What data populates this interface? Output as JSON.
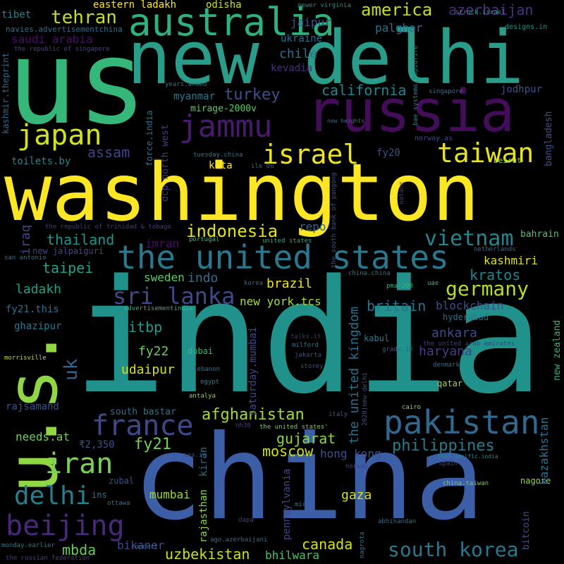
{
  "words": [
    {
      "text": "washington",
      "color": "#fde725"
    },
    {
      "text": "india",
      "color": "#21918c"
    },
    {
      "text": "us",
      "color": "#35b779"
    },
    {
      "text": "new delhi",
      "color": "#2a9d8a"
    },
    {
      "text": "china",
      "color": "#3b5ea6"
    },
    {
      "text": "russia",
      "color": "#440d5a"
    },
    {
      "text": "u.s.",
      "color": "#90d743"
    },
    {
      "text": "australia",
      "color": "#2db27d"
    },
    {
      "text": "the united states",
      "color": "#2a788e"
    },
    {
      "text": "israel",
      "color": "#f0e51a"
    },
    {
      "text": "taiwan",
      "color": "#e8e419"
    },
    {
      "text": "japan",
      "color": "#d2e21b"
    },
    {
      "text": "jammu",
      "color": "#481a6c"
    },
    {
      "text": "pakistan",
      "color": "#31688e"
    },
    {
      "text": "france",
      "color": "#3e4989"
    },
    {
      "text": "iran",
      "color": "#7ad151"
    },
    {
      "text": "beijing",
      "color": "#482878"
    },
    {
      "text": "delhi",
      "color": "#277f8e"
    },
    {
      "text": "south korea",
      "color": "#2a788e"
    },
    {
      "text": "germany",
      "color": "#b5de2b"
    },
    {
      "text": "vietnam",
      "color": "#25858e"
    },
    {
      "text": "sri lanka",
      "color": "#3e4a89"
    },
    {
      "text": "indonesia",
      "color": "#e2e418"
    },
    {
      "text": "tehran",
      "color": "#c2df23"
    },
    {
      "text": "america",
      "color": "#bddf26"
    },
    {
      "text": "azerbaijan",
      "color": "#46327e"
    },
    {
      "text": "saudi arabia",
      "color": "#471063"
    },
    {
      "text": "chile",
      "color": "#2d708e"
    },
    {
      "text": "turkey",
      "color": "#3b528b"
    },
    {
      "text": "california",
      "color": "#25858e"
    },
    {
      "text": "assam",
      "color": "#414487"
    },
    {
      "text": "afghanistan",
      "color": "#a5db36"
    },
    {
      "text": "philippines",
      "color": "#287c8e"
    },
    {
      "text": "thailand",
      "color": "#1f958b"
    },
    {
      "text": "taipei",
      "color": "#20a386"
    },
    {
      "text": "ladakh",
      "color": "#1fa188"
    },
    {
      "text": "britain",
      "color": "#2c728e"
    },
    {
      "text": "blockchain",
      "color": "#3d4e8a"
    },
    {
      "text": "kratos",
      "color": "#26828e"
    },
    {
      "text": "kashmiri",
      "color": "#dde318"
    },
    {
      "text": "brazil",
      "color": "#f1e51d"
    },
    {
      "text": "gujarat",
      "color": "#8bd646"
    },
    {
      "text": "moscow",
      "color": "#d0e11c"
    },
    {
      "text": "hong kong",
      "color": "#3b528b"
    },
    {
      "text": "fy21",
      "color": "#73d056"
    },
    {
      "text": "fy22",
      "color": "#6ccd5a"
    },
    {
      "text": "ankara",
      "color": "#3e4c8a"
    },
    {
      "text": "haryana",
      "color": "#433e85"
    },
    {
      "text": "canada",
      "color": "#d8e219"
    },
    {
      "text": "gaza",
      "color": "#d5e21a"
    },
    {
      "text": "mumbai",
      "color": "#9dd93b"
    },
    {
      "text": "uzbekistan",
      "color": "#cae11f"
    },
    {
      "text": "mbda",
      "color": "#67cc5c"
    },
    {
      "text": "bikaner",
      "color": "#3f4889"
    },
    {
      "text": "bhilwara",
      "color": "#4ac16d"
    },
    {
      "text": "itbp",
      "color": "#1f9a8a"
    },
    {
      "text": "udaipur",
      "color": "#d2e21b"
    },
    {
      "text": "sweden",
      "color": "#5ec962"
    },
    {
      "text": "indo",
      "color": "#2d708e"
    },
    {
      "text": "imran",
      "color": "#471164"
    },
    {
      "text": "repo",
      "color": "#31688e"
    },
    {
      "text": "kota",
      "color": "#fde725"
    },
    {
      "text": "myanmar",
      "color": "#287c8e"
    },
    {
      "text": "mirage-2000v",
      "color": "#5ec962"
    },
    {
      "text": "jaipur",
      "color": "#3b528b"
    },
    {
      "text": "ukraine",
      "color": "#2c728e"
    },
    {
      "text": "palghar",
      "color": "#2e6f8e"
    },
    {
      "text": "kevadia",
      "color": "#46307e"
    },
    {
      "text": "eastern ladakh",
      "color": "#fde725"
    },
    {
      "text": "odisha",
      "color": "#c8e020"
    },
    {
      "text": "tibet",
      "color": "#25848e"
    },
    {
      "text": "navies.advertisementchina",
      "color": "#2d708e"
    },
    {
      "text": "the republic of singapore",
      "color": "#3f4788"
    },
    {
      "text": "newer virginia",
      "color": "#21918c"
    },
    {
      "text": "struck.israel",
      "color": "#1f9e89"
    },
    {
      "text": "designs.in",
      "color": "#1f968b"
    },
    {
      "text": "jodhpur",
      "color": "#3b528b"
    },
    {
      "text": "singapore",
      "color": "#2c728e"
    },
    {
      "text": "years.armed",
      "color": "#2a788e"
    },
    {
      "text": "fy20",
      "color": "#3b528b"
    },
    {
      "text": "norway.as",
      "color": "#3f4889"
    },
    {
      "text": "beirut",
      "color": "#90d743"
    },
    {
      "text": "new heights",
      "color": "#2d708e"
    },
    {
      "text": "toilets.by",
      "color": "#25848e"
    },
    {
      "text": "tuesday.china",
      "color": "#2a788e"
    },
    {
      "text": "ile du",
      "color": "#32648e"
    },
    {
      "text": "bahrain",
      "color": "#50c46a"
    },
    {
      "text": "netherlands",
      "color": "#2d708e"
    },
    {
      "text": "new jalpaiguri",
      "color": "#414487"
    },
    {
      "text": "portugal",
      "color": "#35b779"
    },
    {
      "text": "united states",
      "color": "#22a884"
    },
    {
      "text": "the republic of trinidad & tobago",
      "color": "#433e85"
    },
    {
      "text": "san antonio",
      "color": "#2c728e"
    },
    {
      "text": "korea",
      "color": "#30698e"
    },
    {
      "text": "pma-208",
      "color": "#37b878"
    },
    {
      "text": "uae",
      "color": "#35b779"
    },
    {
      "text": "china.china",
      "color": "#2a788e"
    },
    {
      "text": "fy21.this",
      "color": "#2d708e"
    },
    {
      "text": "advertisementindia",
      "color": "#35b779"
    },
    {
      "text": "hyderabad",
      "color": "#2c728e"
    },
    {
      "text": "ghazipur",
      "color": "#2a788e"
    },
    {
      "text": "talks.it",
      "color": "#46327e"
    },
    {
      "text": "milford",
      "color": "#2a788e"
    },
    {
      "text": "kabul",
      "color": "#287c8e"
    },
    {
      "text": "grade.18",
      "color": "#34618d"
    },
    {
      "text": "the united arab emirates",
      "color": "#433e85"
    },
    {
      "text": "dubai",
      "color": "#35b779"
    },
    {
      "text": "jakarta",
      "color": "#3b528b"
    },
    {
      "text": "storey",
      "color": "#3b528b"
    },
    {
      "text": "denmark",
      "color": "#2d708e"
    },
    {
      "text": "lebanon",
      "color": "#2c728e"
    },
    {
      "text": "egypt",
      "color": "#25848e"
    },
    {
      "text": "antalya",
      "color": "#8bd646"
    },
    {
      "text": "qatar",
      "color": "#a0da39"
    },
    {
      "text": "morrisville",
      "color": "#b5de2b"
    },
    {
      "text": "rajsamand",
      "color": "#3b528b"
    },
    {
      "text": "south bastar",
      "color": "#2c728e"
    },
    {
      "text": "cairo",
      "color": "#8bd646"
    },
    {
      "text": "italy",
      "color": "#3b528b"
    },
    {
      "text": "2020)new delhi",
      "color": "#3b528b"
    },
    {
      "text": "the united states'",
      "color": "#75d054"
    },
    {
      "text": "nh30",
      "color": "#433e85"
    },
    {
      "text": "needs.at",
      "color": "#73d056"
    },
    {
      "text": "₹2,350",
      "color": "#3b528b"
    },
    {
      "text": "sea.in",
      "color": "#3e4989"
    },
    {
      "text": "norway",
      "color": "#414487"
    },
    {
      "text": "spain",
      "color": "#433e85"
    },
    {
      "text": "indo-pacific.india",
      "color": "#21918c"
    },
    {
      "text": "china.taiwan",
      "color": "#75d054"
    },
    {
      "text": "nagore",
      "color": "#8fd744"
    },
    {
      "text": "zubal",
      "color": "#3b528b"
    },
    {
      "text": "ins",
      "color": "#2a788e"
    },
    {
      "text": "ottawa",
      "color": "#2d708e"
    },
    {
      "text": "mich",
      "color": "#2d708e"
    },
    {
      "text": "dapa",
      "color": "#433e85"
    },
    {
      "text": "abhinandan",
      "color": "#2c728e"
    },
    {
      "text": "ago.azerbaijani",
      "color": "#2d708e"
    },
    {
      "text": "monday.earlier",
      "color": "#2a788e"
    },
    {
      "text": "concert",
      "color": "#2d708e"
    },
    {
      "text": "the russian federation",
      "color": "#433e85"
    },
    {
      "text": "kashmir.theprint",
      "color": "#31688e"
    },
    {
      "text": "force.india",
      "color": "#2d708e"
    },
    {
      "text": "dcp north west",
      "color": "#433e85"
    },
    {
      "text": "bangladesh",
      "color": "#3b528b"
    },
    {
      "text": "bae systems,rapidfire",
      "color": "#25848e"
    },
    {
      "text": "natanz",
      "color": "#433e85"
    },
    {
      "text": "the south bank of pangong",
      "color": "#3b528b"
    },
    {
      "text": "iraq",
      "color": "#414487"
    },
    {
      "text": "uk",
      "color": "#32648e"
    },
    {
      "text": "new york.tcs",
      "color": "#a5db36"
    },
    {
      "text": "saturday.mumbai",
      "color": "#3e4a89"
    },
    {
      "text": "the united kingdom",
      "color": "#2d708e"
    },
    {
      "text": "kazakhstan",
      "color": "#2c728e"
    },
    {
      "text": "new zealand",
      "color": "#35b779"
    },
    {
      "text": "rajasthan",
      "color": "#8bd646"
    },
    {
      "text": "kiran",
      "color": "#2d708e"
    },
    {
      "text": "pennsylvania",
      "color": "#3e4989"
    },
    {
      "text": "nagrota",
      "color": "#2a788e"
    },
    {
      "text": "bitcoin",
      "color": "#3b528b"
    }
  ]
}
